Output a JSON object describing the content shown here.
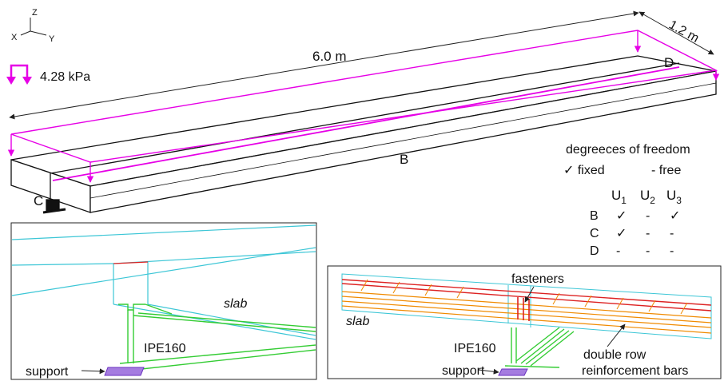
{
  "axes": {
    "x": "X",
    "y": "Y",
    "z": "Z"
  },
  "load": {
    "value": "4.28 kPa",
    "color": "#e600e6"
  },
  "dimensions": {
    "length": "6.0 m",
    "width": "1.2 m"
  },
  "points": {
    "b": "B",
    "c": "C",
    "d": "D"
  },
  "dof": {
    "title": "degreeces of freedom",
    "fixed": "✓ fixed",
    "free": "- free",
    "headers": [
      {
        "base": "U",
        "sub": "1"
      },
      {
        "base": "U",
        "sub": "2"
      },
      {
        "base": "U",
        "sub": "3"
      }
    ],
    "rows": [
      {
        "label": "B",
        "values": [
          "✓",
          "-",
          "✓"
        ]
      },
      {
        "label": "C",
        "values": [
          "✓",
          "-",
          "-"
        ]
      },
      {
        "label": "D",
        "values": [
          "-",
          "-",
          "-"
        ]
      }
    ]
  },
  "detail_left": {
    "slab": "slab",
    "beam": "IPE160",
    "support": "support"
  },
  "detail_right": {
    "fasteners": "fasteners",
    "slab": "slab",
    "beam": "IPE160",
    "support": "support",
    "bars_line1": "double row",
    "bars_line2": "reinforcement bars"
  },
  "colors": {
    "cyan": "#3cc6d6",
    "green": "#33cc33",
    "orange": "#f08a00",
    "red": "#dd2222",
    "magenta": "#e600e6",
    "purple": "#8a3cd6"
  }
}
